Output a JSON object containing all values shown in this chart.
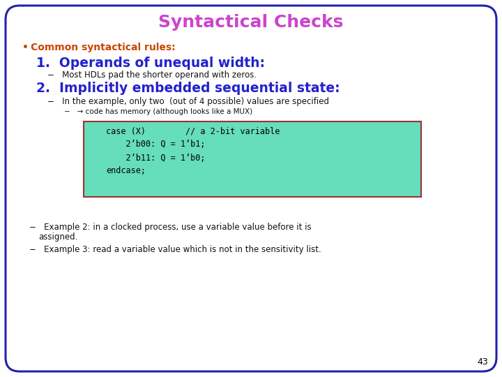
{
  "title": "Syntactical Checks",
  "title_color": "#cc44cc",
  "title_fontsize": 18,
  "bg_color": "#ffffff",
  "border_color": "#2222aa",
  "bullet_color": "#cc4400",
  "bullet_text": "Common syntactical rules:",
  "heading1": "1.  Operands of unequal width:",
  "heading1_color": "#2222cc",
  "heading1_fontsize": 13.5,
  "sub1": "−   Most HDLs pad the shorter operand with zeros.",
  "heading2": "2.  Implicitly embedded sequential state:",
  "heading2_color": "#2222cc",
  "heading2_fontsize": 13.5,
  "sub2a": "−   In the example, only two  (out of 4 possible) values are specified",
  "sub2b": "−   → code has memory (although looks like a MUX)",
  "code_bg": "#66ddbb",
  "code_border": "#993333",
  "code_lines": [
    "case (X)        // a 2-bit variable",
    "    2’b00: Q = 1’b1;",
    "    2’b11: Q = 1’b0;",
    "endcase;"
  ],
  "footnote1a": "−   Example 2: in a clocked process, use a variable value before it is",
  "footnote1b": "    assigned.",
  "footnote2": "−   Example 3: read a variable value which is not in the sensitivity list.",
  "page_num": "43",
  "text_color": "#000000",
  "sub_color": "#111111",
  "code_color": "#000000",
  "bullet_fontsize": 10,
  "sub_fontsize": 8.5,
  "sub2b_fontsize": 7.5,
  "footnote_fontsize": 8.5,
  "code_fontsize": 8.5,
  "page_fontsize": 9
}
